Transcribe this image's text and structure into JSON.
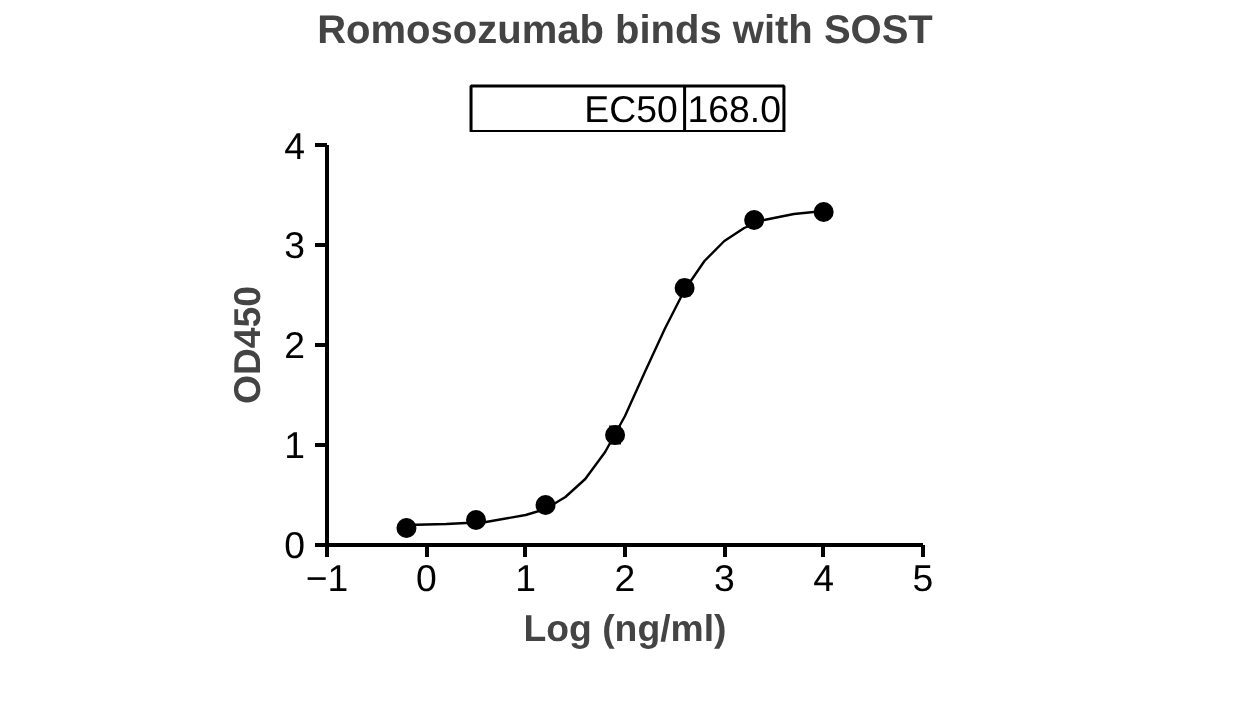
{
  "chart_data": {
    "type": "scatter",
    "title": "Romosozumab binds with SOST",
    "xlabel": "Log (ng/ml)",
    "ylabel": "OD450",
    "xlim": [
      -1,
      5
    ],
    "xticks": [
      -1,
      0,
      1,
      2,
      3,
      4,
      5
    ],
    "ylim": [
      0,
      4
    ],
    "yticks": [
      0,
      1,
      2,
      3,
      4
    ],
    "grid": false,
    "annotations": [
      "EC50",
      "168.0"
    ],
    "series": [
      {
        "color": "#000000",
        "marker": "circle",
        "x": [
          -0.2,
          0.5,
          1.2,
          1.9,
          2.6,
          3.3,
          4.0
        ],
        "values": [
          0.17,
          0.25,
          0.4,
          1.1,
          2.57,
          3.25,
          3.33
        ],
        "errors": [
          null,
          null,
          null,
          0.08,
          0.07,
          null,
          null
        ]
      },
      {
        "type": "line",
        "color": "#000000",
        "x": [
          -0.2,
          0.2,
          0.6,
          1.0,
          1.2,
          1.4,
          1.6,
          1.8,
          2.0,
          2.2,
          2.4,
          2.6,
          2.8,
          3.0,
          3.2,
          3.4,
          3.7,
          4.0
        ],
        "values": [
          0.2,
          0.21,
          0.23,
          0.3,
          0.36,
          0.48,
          0.66,
          0.93,
          1.29,
          1.73,
          2.16,
          2.55,
          2.84,
          3.04,
          3.17,
          3.25,
          3.31,
          3.34
        ]
      }
    ]
  }
}
